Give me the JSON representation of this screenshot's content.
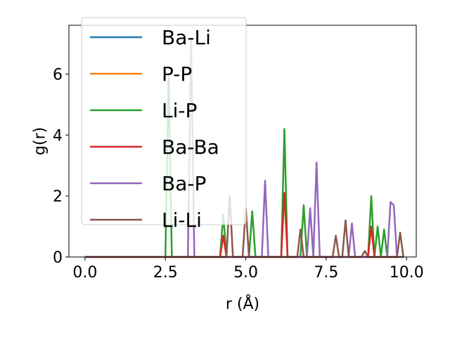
{
  "chart_data": {
    "type": "line",
    "title": "",
    "xlabel": "r (Å)",
    "ylabel": "g(r)",
    "xlim": [
      -0.5,
      10.3
    ],
    "ylim": [
      0,
      7.6
    ],
    "xticks": [
      0.0,
      2.5,
      5.0,
      7.5,
      10.0
    ],
    "xtick_labels": [
      "0.0",
      "2.5",
      "5.0",
      "7.5",
      "10.0"
    ],
    "yticks": [
      0,
      2,
      4,
      6
    ],
    "ytick_labels": [
      "0",
      "2",
      "4",
      "6"
    ],
    "grid": false,
    "legend_position": "top-left",
    "series": [
      {
        "name": "Ba-Li",
        "color": "#1f77b4",
        "x": [
          0,
          9.9
        ],
        "y": [
          0,
          0
        ]
      },
      {
        "name": "P-P",
        "color": "#ff7f0e",
        "x": [
          0,
          9.9
        ],
        "y": [
          0,
          0
        ]
      },
      {
        "name": "Li-P",
        "color": "#2ca02c",
        "x": [
          0,
          2.5,
          2.6,
          2.7,
          4.2,
          4.3,
          4.4,
          5.1,
          5.2,
          5.3,
          6.1,
          6.2,
          6.3,
          6.7,
          6.8,
          6.9,
          8.8,
          8.9,
          9.0,
          9.1,
          9.2,
          9.3,
          9.4,
          9.5,
          9.9
        ],
        "y": [
          0,
          0,
          6.0,
          0,
          0,
          1.4,
          0,
          0,
          1.5,
          0,
          0,
          4.2,
          0,
          0,
          1.7,
          0,
          0,
          2.0,
          0,
          1.0,
          0,
          0.9,
          0,
          0,
          0
        ]
      },
      {
        "name": "Ba-Ba",
        "color": "#d62728",
        "x": [
          0,
          4.2,
          4.3,
          4.4,
          6.1,
          6.2,
          6.3,
          8.8,
          8.9,
          9.0,
          9.9
        ],
        "y": [
          0,
          0,
          0.7,
          0,
          0,
          2.1,
          0,
          0,
          1.0,
          0,
          0
        ]
      },
      {
        "name": "Ba-P",
        "color": "#9467bd",
        "x": [
          0,
          3.2,
          3.3,
          3.4,
          5.5,
          5.6,
          5.7,
          6.9,
          7.0,
          7.1,
          7.2,
          7.3,
          8.2,
          8.3,
          8.4,
          9.4,
          9.5,
          9.6,
          9.7,
          9.9
        ],
        "y": [
          0,
          0,
          7.1,
          0,
          0,
          2.5,
          0,
          0,
          1.6,
          0,
          3.1,
          0,
          0,
          1.1,
          0,
          0,
          1.8,
          1.7,
          0,
          0
        ]
      },
      {
        "name": "Li-Li",
        "color": "#8c564b",
        "x": [
          0,
          4.4,
          4.5,
          4.6,
          4.9,
          5.0,
          5.1,
          6.6,
          6.7,
          6.8,
          7.7,
          7.8,
          7.9,
          8.0,
          8.1,
          8.2,
          8.6,
          8.7,
          8.8,
          9.7,
          9.8,
          9.9
        ],
        "y": [
          0,
          0,
          2.0,
          0,
          0,
          1.6,
          0,
          0,
          0.9,
          0,
          0,
          0.7,
          0,
          0,
          1.2,
          0,
          0,
          0.2,
          0,
          0,
          0.8,
          0
        ]
      }
    ]
  }
}
